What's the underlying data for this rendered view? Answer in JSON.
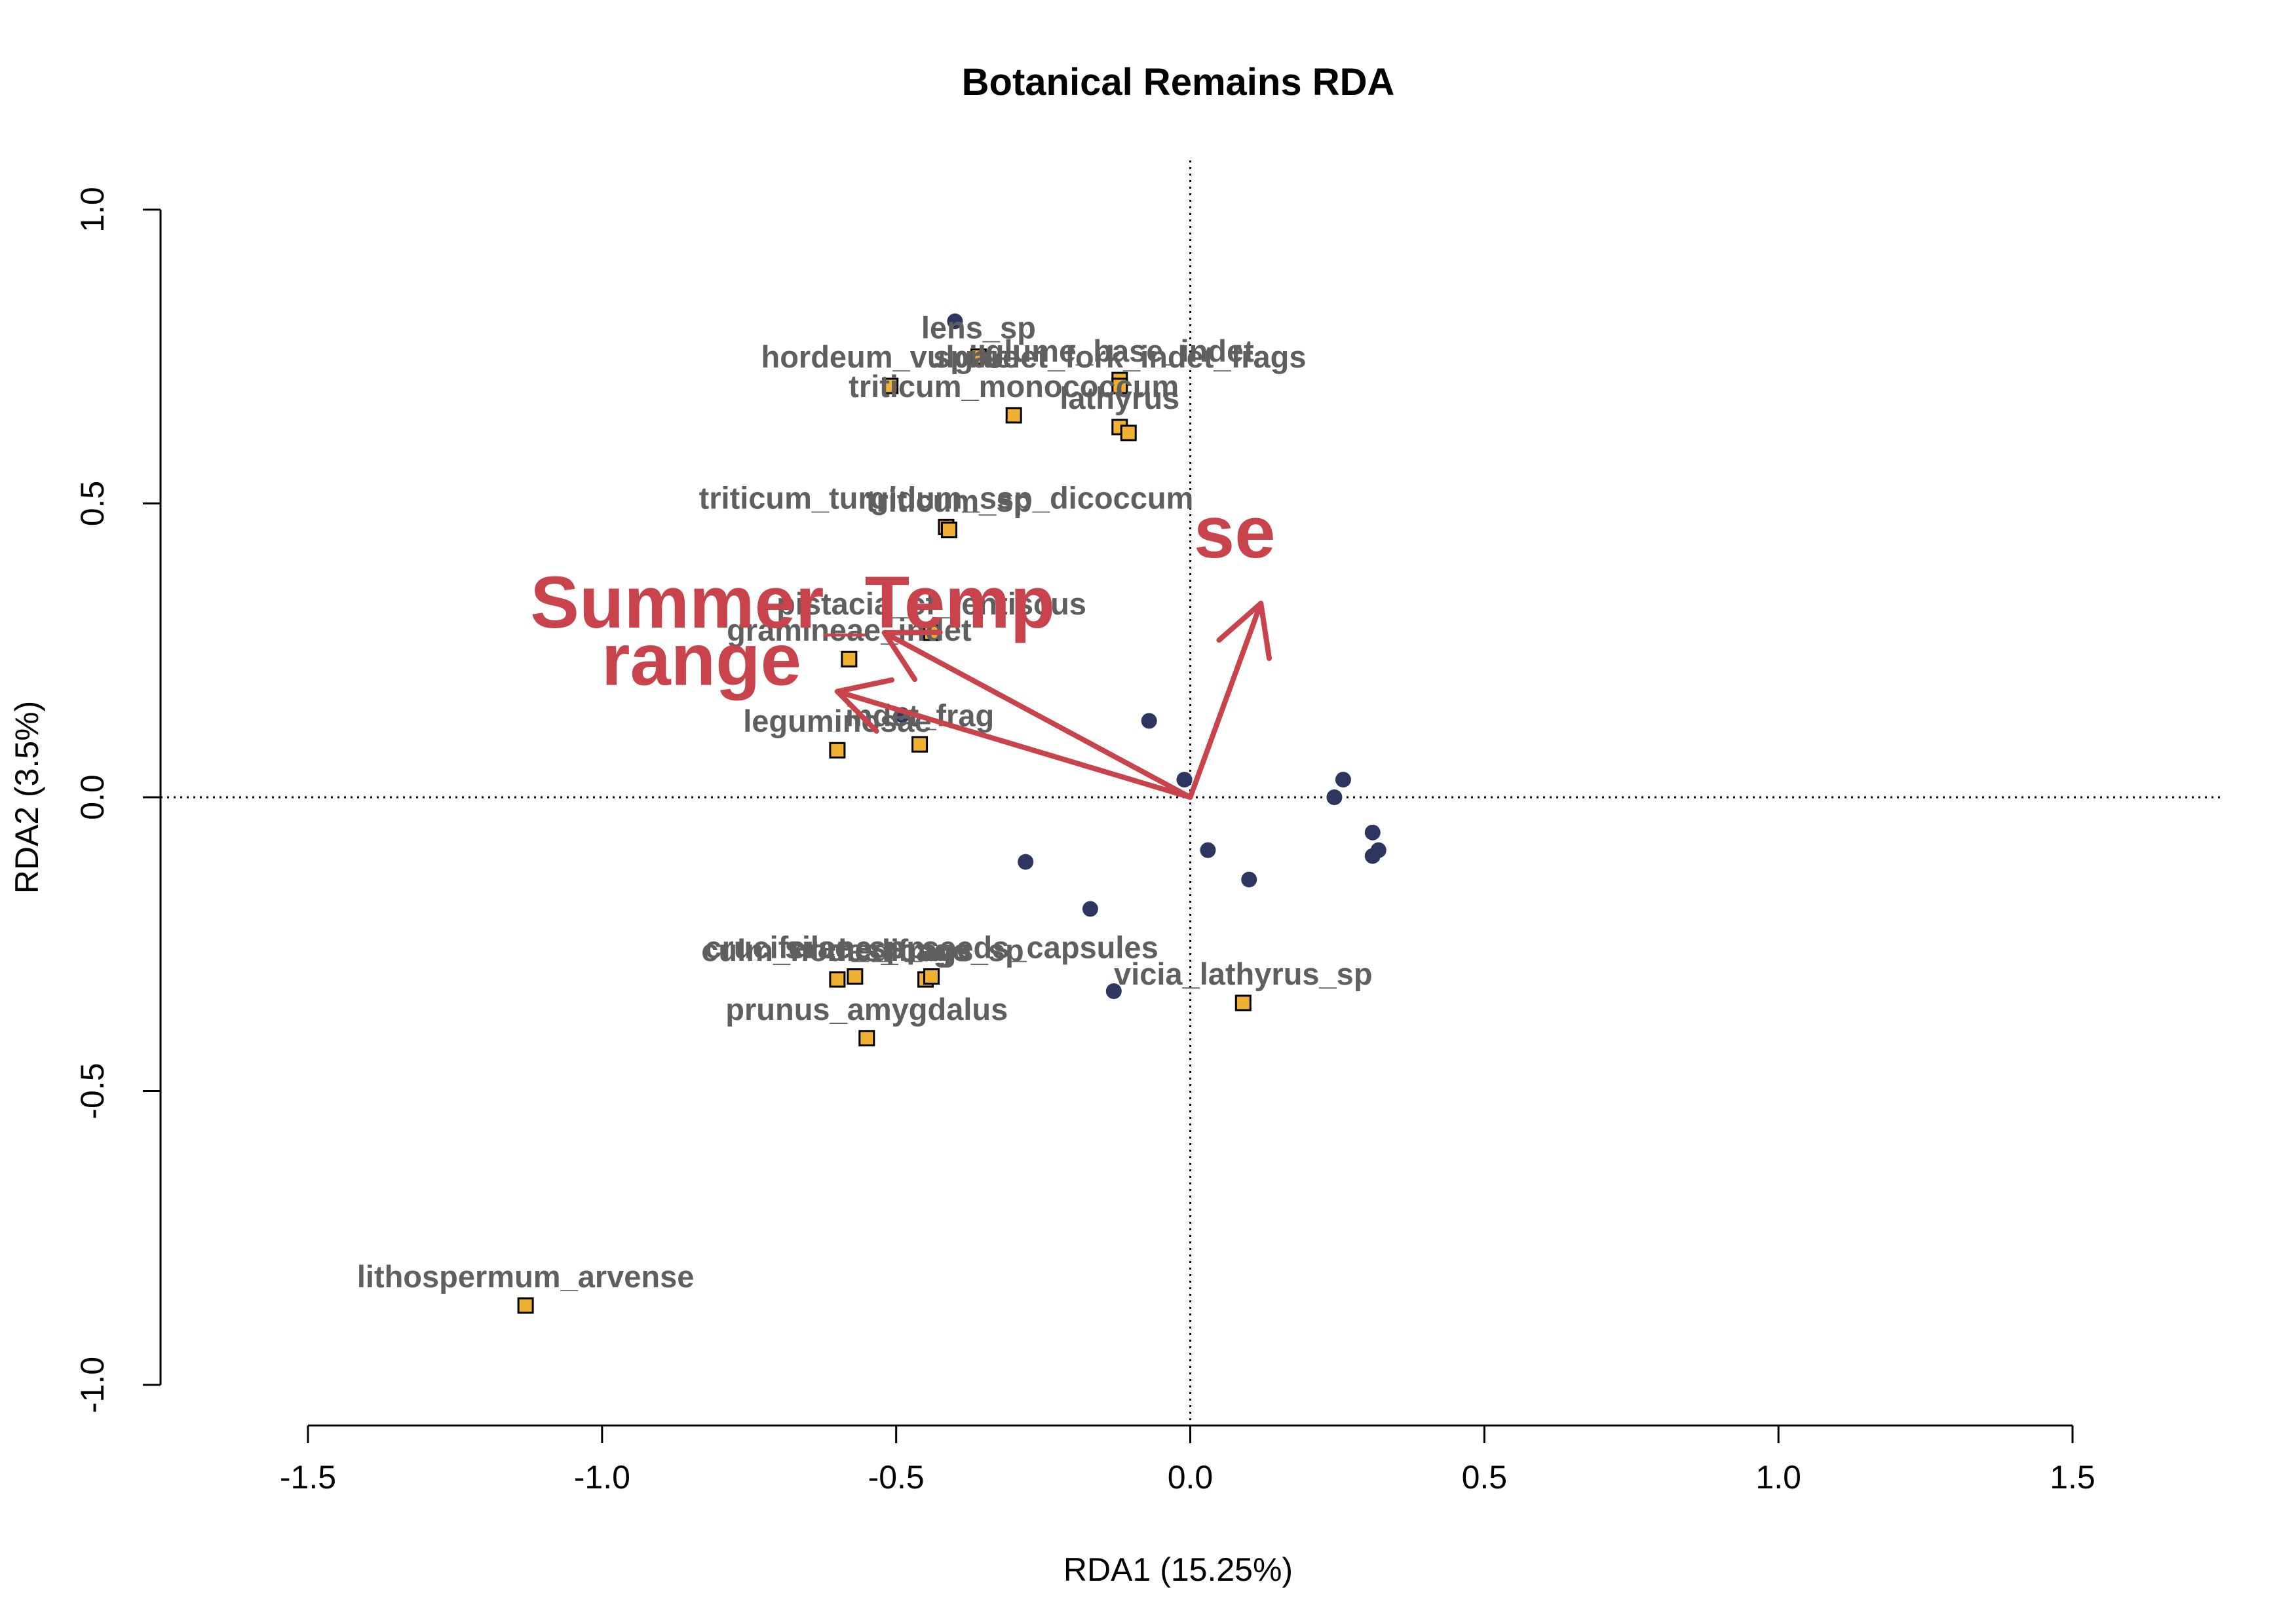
{
  "chart_data": {
    "type": "scatter",
    "title": "Botanical Remains RDA",
    "xlabel": "RDA1 (15.25%)",
    "ylabel": "RDA2 (3.5%)",
    "xlim": [
      -1.5,
      1.5
    ],
    "ylim": [
      -1.0,
      1.0
    ],
    "x_ticks": [
      -1.5,
      -1.0,
      -0.5,
      0.0,
      0.5,
      1.0,
      1.5
    ],
    "y_ticks": [
      -1.0,
      -0.5,
      0.0,
      0.5,
      1.0
    ],
    "x_tick_labels": [
      "-1.5",
      "-1.0",
      "-0.5",
      "0.0",
      "0.5",
      "1.0",
      "1.5"
    ],
    "y_tick_labels": [
      "-1.0",
      "-0.5",
      "0.0",
      "0.5",
      "1.0"
    ],
    "grid": false,
    "reference_lines": "dotted lines at x = 0 and y = 0",
    "colors": {
      "sites": "#2d3561",
      "species_fill": "#f0b030",
      "species_label": "#5f5f5f",
      "env": "#c8434b"
    },
    "sites": [
      {
        "x": -0.4,
        "y": 0.81
      },
      {
        "x": -0.49,
        "y": 0.14
      },
      {
        "x": -0.07,
        "y": 0.13
      },
      {
        "x": -0.01,
        "y": 0.03
      },
      {
        "x": 0.26,
        "y": 0.03
      },
      {
        "x": 0.245,
        "y": 0.0
      },
      {
        "x": 0.31,
        "y": -0.06
      },
      {
        "x": 0.32,
        "y": -0.09
      },
      {
        "x": 0.31,
        "y": -0.1
      },
      {
        "x": 0.03,
        "y": -0.09
      },
      {
        "x": 0.1,
        "y": -0.14
      },
      {
        "x": -0.28,
        "y": -0.11
      },
      {
        "x": -0.17,
        "y": -0.19
      },
      {
        "x": -0.13,
        "y": -0.33
      }
    ],
    "species": [
      {
        "label": "lens_sp",
        "x": -0.36,
        "y": 0.75
      },
      {
        "label": "hordeum_vulgare",
        "x": -0.51,
        "y": 0.7
      },
      {
        "label": "glume_base_indet",
        "x": -0.12,
        "y": 0.71
      },
      {
        "label": "spikelet_fork_indet_frags",
        "x": -0.12,
        "y": 0.7
      },
      {
        "label": "triticum_monococcum",
        "x": -0.3,
        "y": 0.65
      },
      {
        "label": "lathyrus",
        "x": -0.12,
        "y": 0.63
      },
      {
        "label": "",
        "x": -0.105,
        "y": 0.62
      },
      {
        "label": "triticum_turgidum_ssp_dicoccum",
        "x": -0.415,
        "y": 0.46
      },
      {
        "label": "triticum_sp",
        "x": -0.41,
        "y": 0.455
      },
      {
        "label": "gramineae_indet",
        "x": -0.58,
        "y": 0.235
      },
      {
        "label": "pistacia_cf_lentiscus",
        "x": -0.44,
        "y": 0.28
      },
      {
        "label": "leguminosae",
        "x": -0.6,
        "y": 0.08
      },
      {
        "label": "indet_frag",
        "x": -0.46,
        "y": 0.09
      },
      {
        "label": "medicago_sp",
        "x": -0.45,
        "y": -0.31
      },
      {
        "label": "culm_nodes_frags",
        "x": -0.6,
        "y": -0.31
      },
      {
        "label": "silene_sp",
        "x": -0.57,
        "y": -0.305
      },
      {
        "label": "cruciferae_sp_seeds_capsules",
        "x": -0.44,
        "y": -0.305
      },
      {
        "label": "vicia_lathyrus_sp",
        "x": 0.09,
        "y": -0.35
      },
      {
        "label": "prunus_amygdalus",
        "x": -0.55,
        "y": -0.41
      },
      {
        "label": "lithospermum_arvense",
        "x": -1.13,
        "y": -0.865
      }
    ],
    "env_vectors": [
      {
        "label": "Summer_Temp",
        "x": -0.52,
        "y": 0.28
      },
      {
        "label": "range",
        "x": -0.6,
        "y": 0.18
      },
      {
        "label": "se",
        "x": 0.12,
        "y": 0.33
      }
    ]
  }
}
